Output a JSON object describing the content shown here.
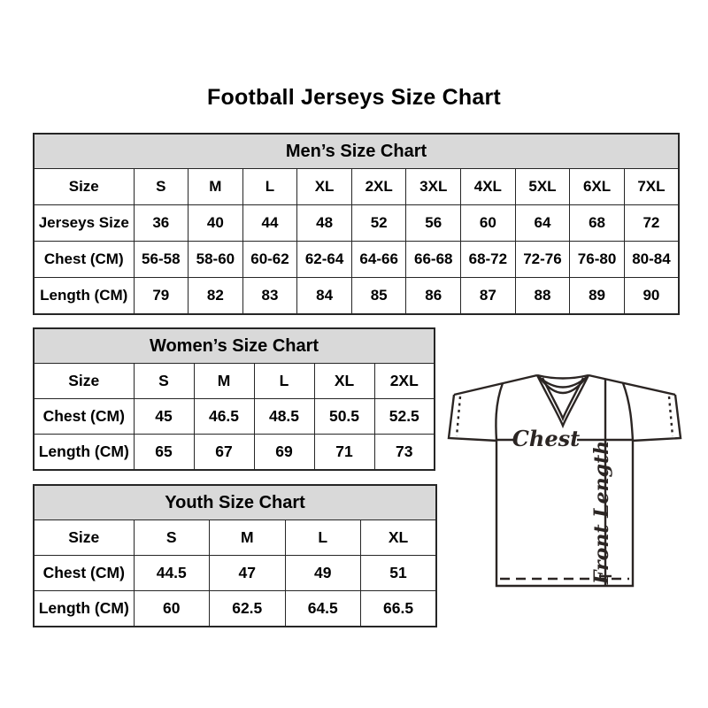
{
  "title": "Football Jerseys Size Chart",
  "tables": [
    {
      "header": "Men’s Size Chart",
      "rows": [
        [
          "Size",
          "S",
          "M",
          "L",
          "XL",
          "2XL",
          "3XL",
          "4XL",
          "5XL",
          "6XL",
          "7XL"
        ],
        [
          "Jerseys Size",
          "36",
          "40",
          "44",
          "48",
          "52",
          "56",
          "60",
          "64",
          "68",
          "72"
        ],
        [
          "Chest (CM)",
          "56-58",
          "58-60",
          "60-62",
          "62-64",
          "64-66",
          "66-68",
          "68-72",
          "72-76",
          "76-80",
          "80-84"
        ],
        [
          "Length (CM)",
          "79",
          "82",
          "83",
          "84",
          "85",
          "86",
          "87",
          "88",
          "89",
          "90"
        ]
      ]
    },
    {
      "header": "Women’s Size Chart",
      "rows": [
        [
          "Size",
          "S",
          "M",
          "L",
          "XL",
          "2XL"
        ],
        [
          "Chest (CM)",
          "45",
          "46.5",
          "48.5",
          "50.5",
          "52.5"
        ],
        [
          "Length (CM)",
          "65",
          "67",
          "69",
          "71",
          "73"
        ]
      ]
    },
    {
      "header": "Youth Size Chart",
      "rows": [
        [
          "Size",
          "S",
          "M",
          "L",
          "XL"
        ],
        [
          "Chest (CM)",
          "44.5",
          "47",
          "49",
          "51"
        ],
        [
          "Length (CM)",
          "60",
          "62.5",
          "64.5",
          "66.5"
        ]
      ]
    }
  ],
  "diagram": {
    "chest_label": "Chest",
    "front_length_label": "Front Length"
  },
  "colors": {
    "header_band_bg": "#d9d9d9",
    "table_border": "#262626",
    "text": "#000000",
    "diagram_line": "#2b2523"
  }
}
